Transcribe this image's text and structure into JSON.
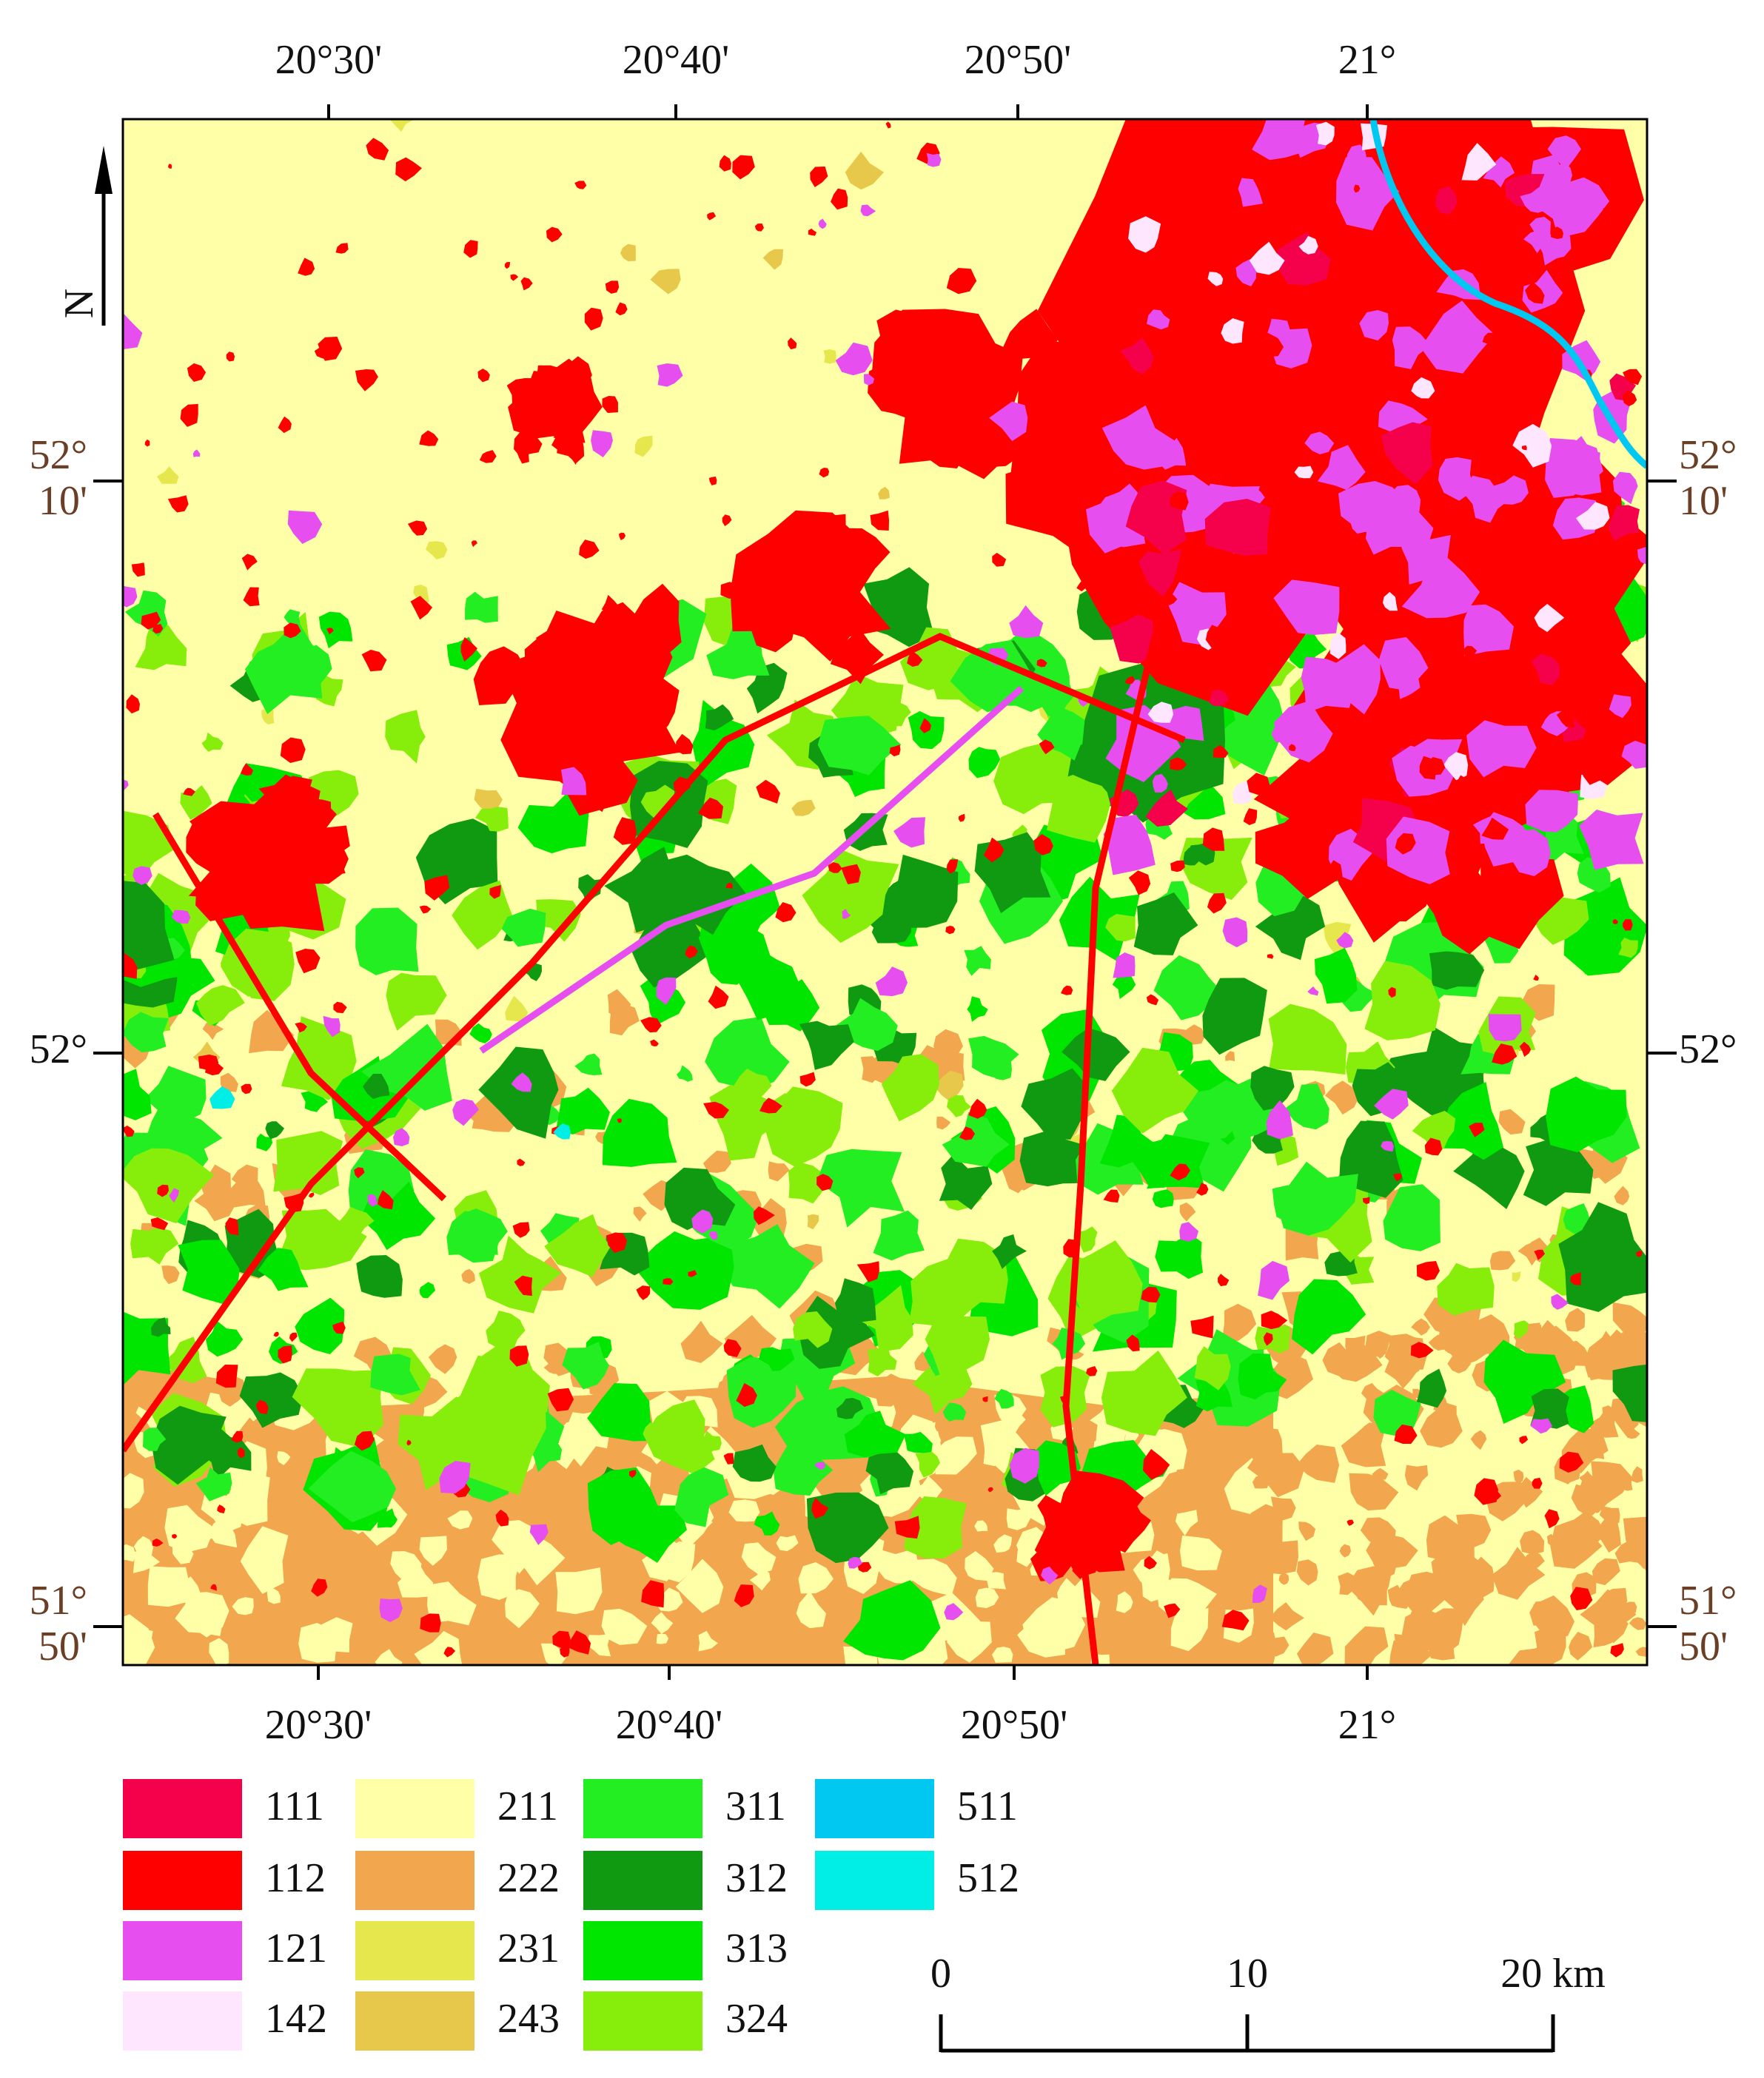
{
  "map": {
    "top_labels": [
      "20°30'",
      "20°40'",
      "20°50'",
      "21°"
    ],
    "bottom_labels": [
      "20°30'",
      "20°40'",
      "20°50'",
      "21°"
    ],
    "left_labels": [
      [
        "52°",
        "10'"
      ],
      [
        "52°"
      ],
      [
        "51°",
        "50'"
      ]
    ],
    "right_labels": [
      [
        "52°",
        "10'"
      ],
      [
        "52°"
      ],
      [
        "51°",
        "50'"
      ]
    ],
    "north": "N",
    "legend": [
      {
        "code": "111",
        "color": "#f5004b"
      },
      {
        "code": "112",
        "color": "#ff0000"
      },
      {
        "code": "121",
        "color": "#e64ef0"
      },
      {
        "code": "142",
        "color": "#ffe6ff"
      },
      {
        "code": "211",
        "color": "#ffffa8"
      },
      {
        "code": "222",
        "color": "#f2a64d"
      },
      {
        "code": "231",
        "color": "#e6e64d"
      },
      {
        "code": "243",
        "color": "#e8c84a"
      },
      {
        "code": "311",
        "color": "#22ee22"
      },
      {
        "code": "312",
        "color": "#0f9a12"
      },
      {
        "code": "313",
        "color": "#00e600"
      },
      {
        "code": "324",
        "color": "#86ee0a"
      },
      {
        "code": "511",
        "color": "#00c8f0"
      },
      {
        "code": "512",
        "color": "#00eee6"
      }
    ],
    "scale_bar": {
      "labels": [
        "0",
        "10",
        "20 km"
      ]
    }
  }
}
